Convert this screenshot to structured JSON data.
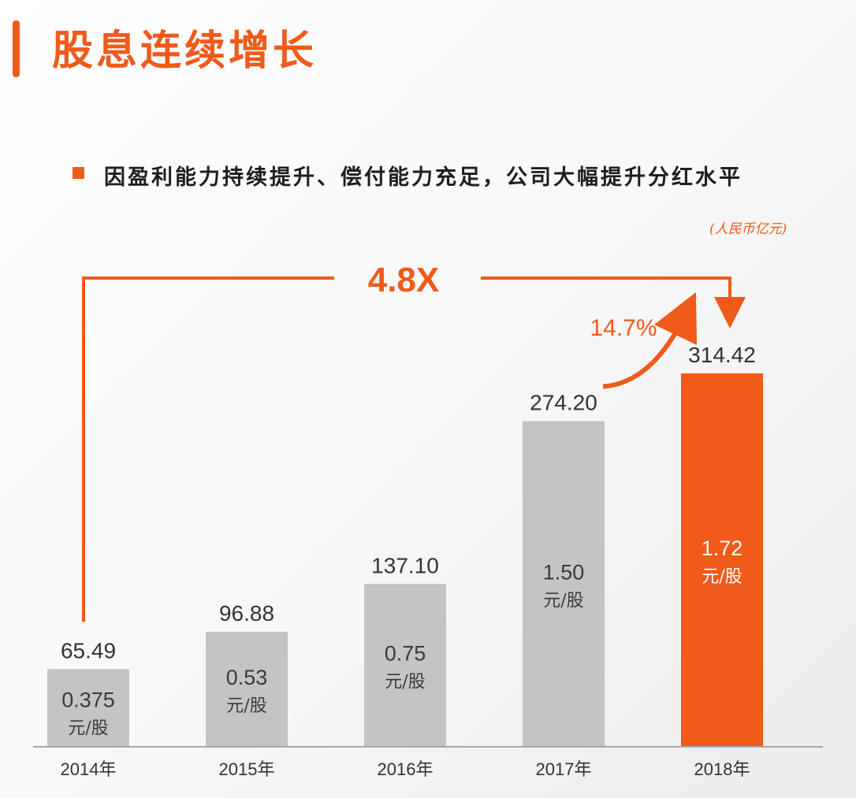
{
  "header": {
    "title": "股息连续增长",
    "subtitle": "因盈利能力持续提升、偿付能力充足，公司大幅提升分红水平",
    "unit": "(人民币亿元)"
  },
  "colors": {
    "accent": "#f05a1a",
    "bar": "#c4c4c4",
    "text": "#333333"
  },
  "annotations": {
    "multiple": "4.8X",
    "growth": "14.7%"
  },
  "chart_data": {
    "type": "bar",
    "categories": [
      "2014年",
      "2015年",
      "2016年",
      "2017年",
      "2018年"
    ],
    "values": [
      65.49,
      96.88,
      137.1,
      274.2,
      314.42
    ],
    "value_labels": [
      "65.49",
      "96.88",
      "137.10",
      "274.20",
      "314.42"
    ],
    "dps": [
      "0.375",
      "0.53",
      "0.75",
      "1.50",
      "1.72"
    ],
    "dps_unit": "元/股",
    "highlight_index": 4,
    "ylim": [
      0,
      314.42
    ],
    "grid": false
  }
}
